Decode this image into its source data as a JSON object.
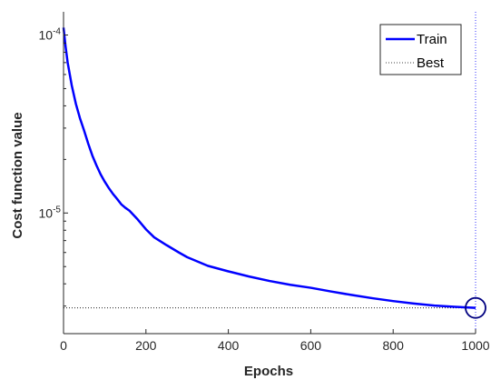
{
  "chart_data": {
    "type": "line",
    "xlabel": "Epochs",
    "ylabel": "Cost function value",
    "xlim": [
      0,
      1000
    ],
    "ylim": [
      2.1e-06,
      0.000135
    ],
    "yscale": "log",
    "grid": false,
    "legend_position": "top-right",
    "x_ticks": [
      {
        "value": 0,
        "label": "0"
      },
      {
        "value": 200,
        "label": "200"
      },
      {
        "value": 400,
        "label": "400"
      },
      {
        "value": 600,
        "label": "600"
      },
      {
        "value": 800,
        "label": "800"
      },
      {
        "value": 1000,
        "label": "1000"
      }
    ],
    "y_ticks": [
      {
        "value": 1e-05,
        "base": "10",
        "exp": "-5"
      },
      {
        "value": 0.0001,
        "base": "10",
        "exp": "-4"
      }
    ],
    "series": [
      {
        "name": "Train",
        "color": "#0000ff",
        "style": "solid",
        "x": [
          0,
          5,
          10,
          20,
          30,
          40,
          50,
          60,
          70,
          80,
          90,
          100,
          110,
          120,
          130,
          140,
          150,
          160,
          180,
          200,
          220,
          250,
          280,
          300,
          350,
          400,
          450,
          500,
          550,
          600,
          650,
          700,
          750,
          800,
          850,
          900,
          950,
          1000
        ],
        "y": [
          0.00011,
          8.6e-05,
          7e-05,
          5.2e-05,
          4.1e-05,
          3.4e-05,
          2.9e-05,
          2.45e-05,
          2.1e-05,
          1.85e-05,
          1.65e-05,
          1.5e-05,
          1.38e-05,
          1.28e-05,
          1.2e-05,
          1.12e-05,
          1.07e-05,
          1.03e-05,
          9.2e-06,
          8.1e-06,
          7.3e-06,
          6.6e-06,
          6e-06,
          5.65e-06,
          5.05e-06,
          4.7e-06,
          4.4e-06,
          4.15e-06,
          3.95e-06,
          3.8e-06,
          3.62e-06,
          3.46e-06,
          3.32e-06,
          3.2e-06,
          3.1e-06,
          3.02e-06,
          2.97e-06,
          2.93e-06
        ]
      },
      {
        "name": "Best",
        "color": "#0000ff",
        "style": "dotted"
      }
    ],
    "best": {
      "epoch": 1000,
      "value": 2.93e-06,
      "marker": "circle"
    }
  }
}
